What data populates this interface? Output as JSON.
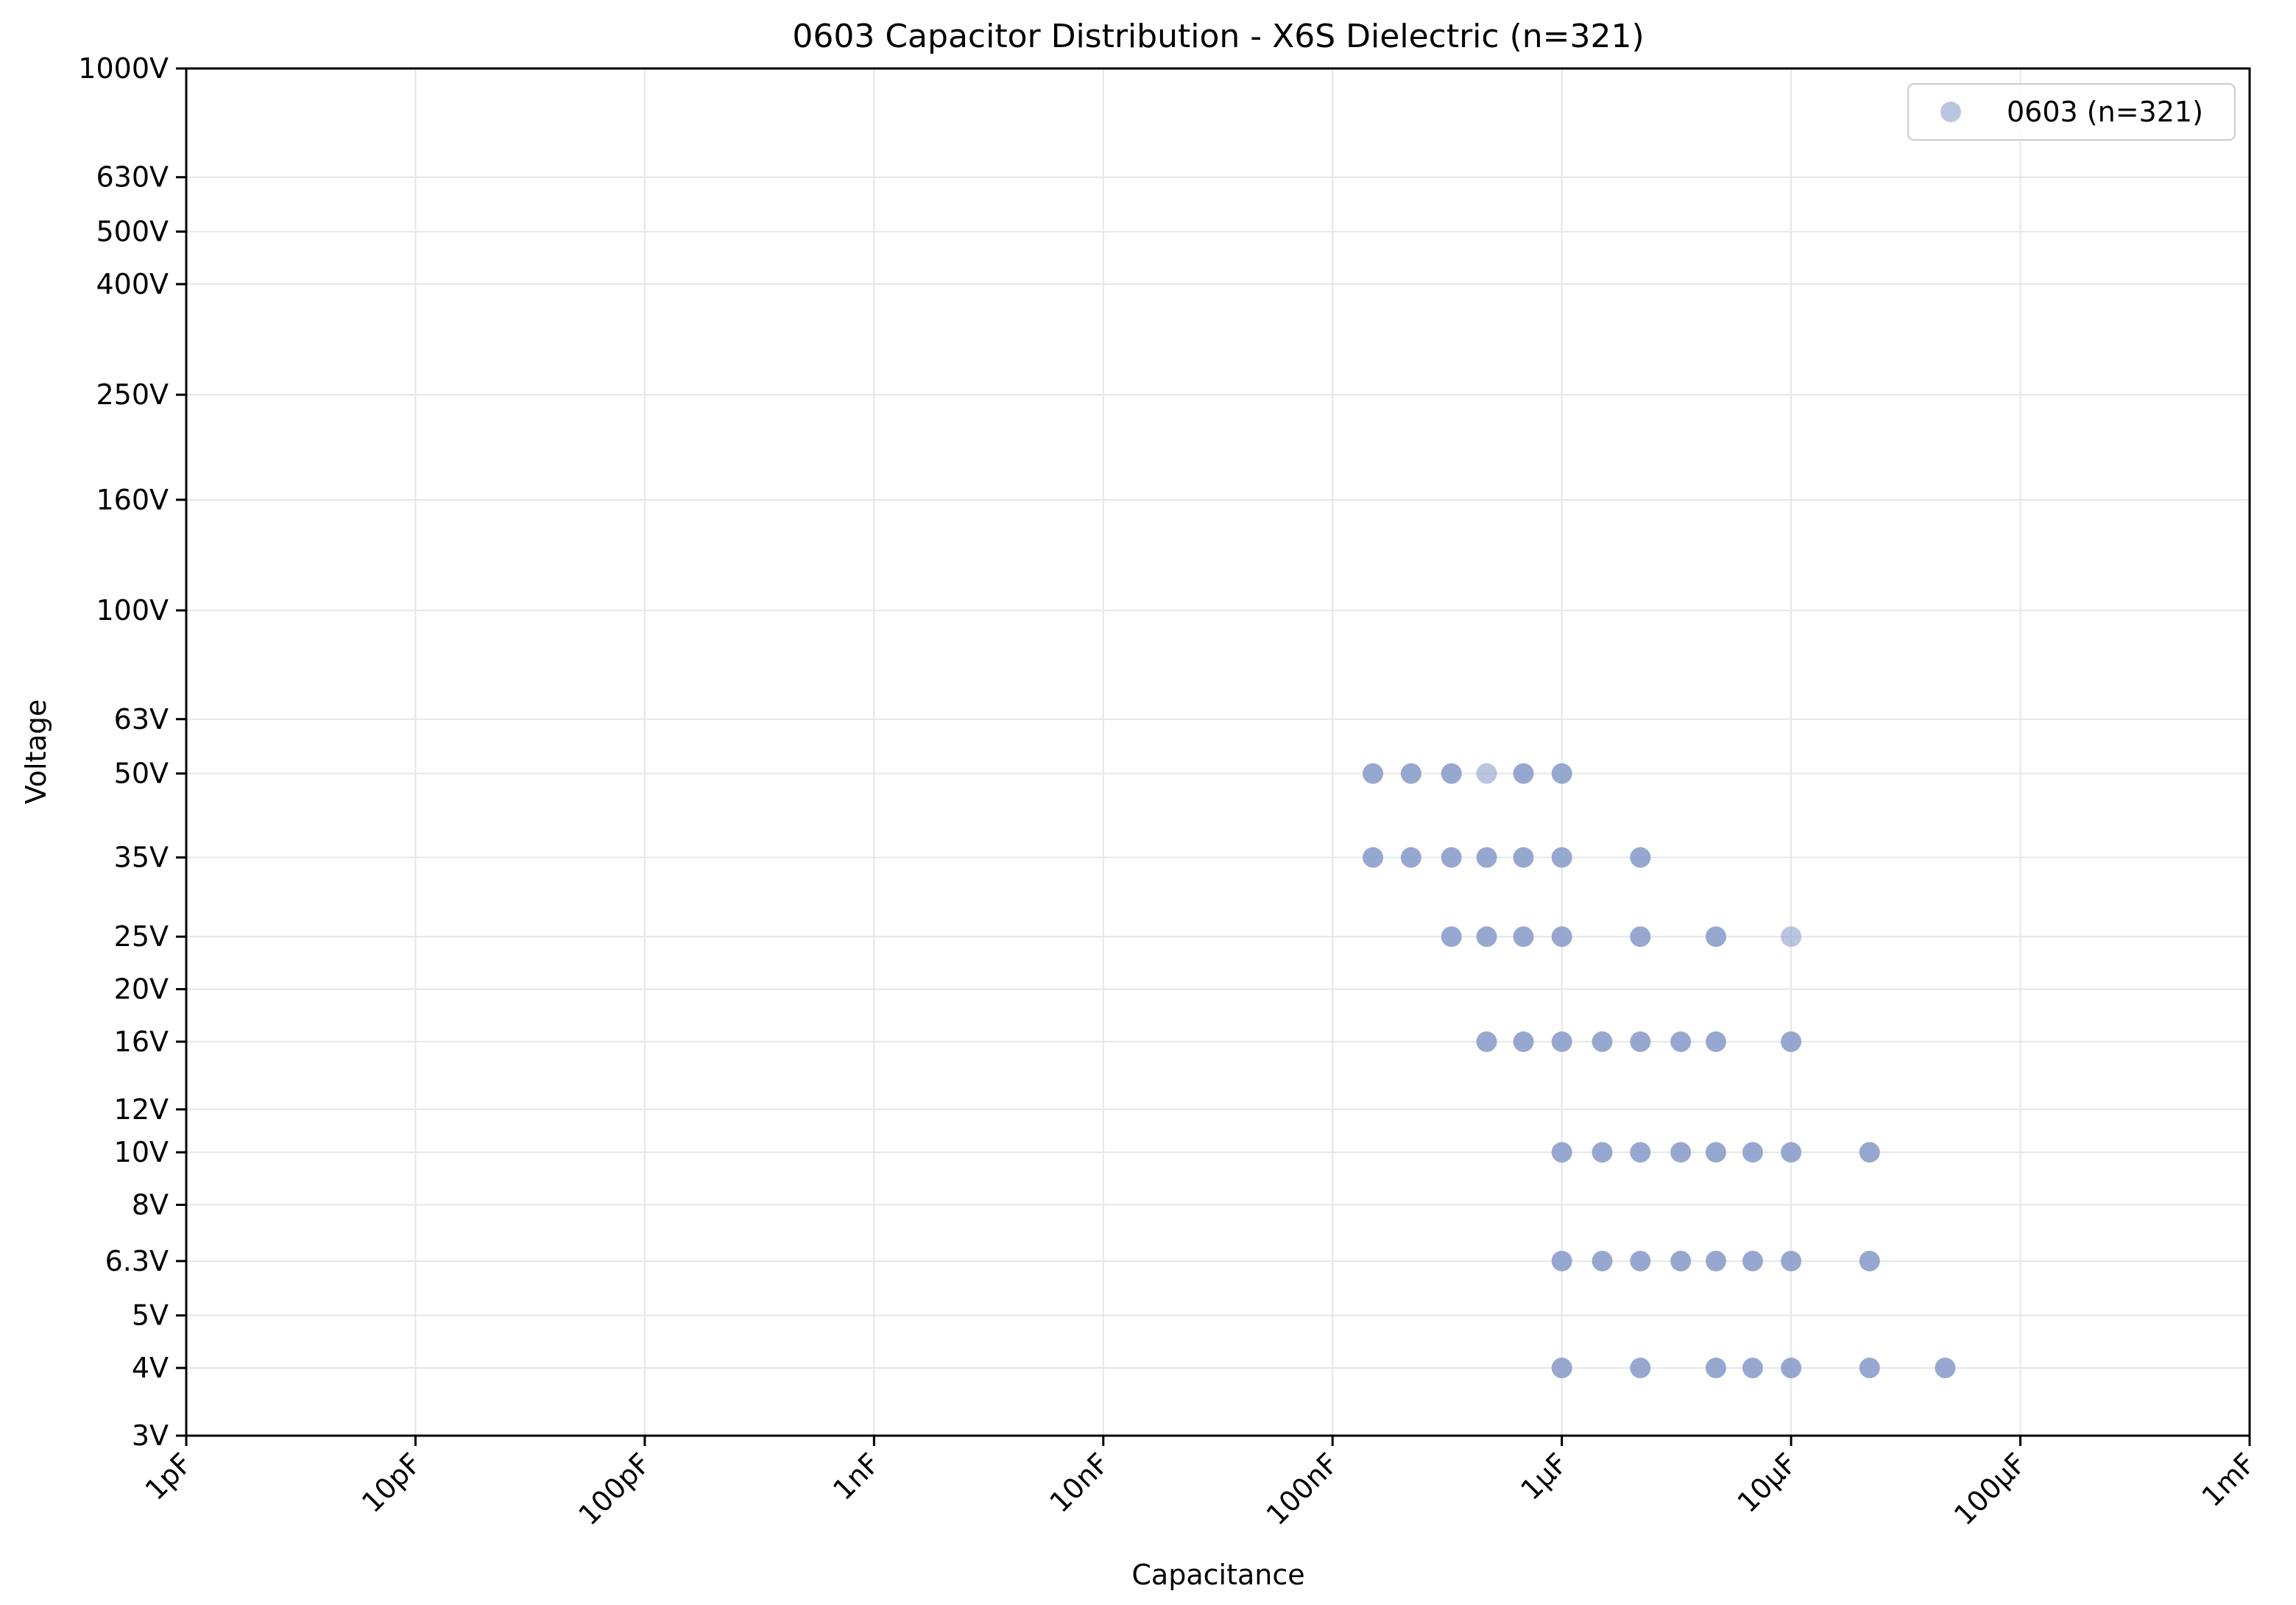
{
  "chart_data": {
    "type": "scatter",
    "title": "0603 Capacitor Distribution - X6S Dielectric (n=321)",
    "xlabel": "Capacitance",
    "ylabel": "Voltage",
    "x_scale": "log",
    "y_scale": "log",
    "xlim_farads": [
      1e-12,
      0.001
    ],
    "ylim_volts": [
      3,
      1000
    ],
    "grid": true,
    "legend_position": "top-right",
    "x_ticks": [
      {
        "value": 1e-12,
        "label": "1pF"
      },
      {
        "value": 1e-11,
        "label": "10pF"
      },
      {
        "value": 1e-10,
        "label": "100pF"
      },
      {
        "value": 1e-09,
        "label": "1nF"
      },
      {
        "value": 1e-08,
        "label": "10nF"
      },
      {
        "value": 1e-07,
        "label": "100nF"
      },
      {
        "value": 1e-06,
        "label": "1µF"
      },
      {
        "value": 1e-05,
        "label": "10µF"
      },
      {
        "value": 0.0001,
        "label": "100µF"
      },
      {
        "value": 0.001,
        "label": "1mF"
      }
    ],
    "y_ticks": [
      {
        "value": 3,
        "label": "3V"
      },
      {
        "value": 4,
        "label": "4V"
      },
      {
        "value": 5,
        "label": "5V"
      },
      {
        "value": 6.3,
        "label": "6.3V"
      },
      {
        "value": 8,
        "label": "8V"
      },
      {
        "value": 10,
        "label": "10V"
      },
      {
        "value": 12,
        "label": "12V"
      },
      {
        "value": 16,
        "label": "16V"
      },
      {
        "value": 20,
        "label": "20V"
      },
      {
        "value": 25,
        "label": "25V"
      },
      {
        "value": 35,
        "label": "35V"
      },
      {
        "value": 50,
        "label": "50V"
      },
      {
        "value": 63,
        "label": "63V"
      },
      {
        "value": 100,
        "label": "100V"
      },
      {
        "value": 160,
        "label": "160V"
      },
      {
        "value": 250,
        "label": "250V"
      },
      {
        "value": 400,
        "label": "400V"
      },
      {
        "value": 500,
        "label": "500V"
      },
      {
        "value": 630,
        "label": "630V"
      },
      {
        "value": 1000,
        "label": "1000V"
      }
    ],
    "series": [
      {
        "name": "0603 (n=321)",
        "color": "#8c9fcb",
        "points": [
          {
            "c": 1.5e-07,
            "v": 50,
            "dense": true
          },
          {
            "c": 2.2e-07,
            "v": 50,
            "dense": true
          },
          {
            "c": 3.3e-07,
            "v": 50,
            "dense": true
          },
          {
            "c": 4.7e-07,
            "v": 50,
            "dense": false
          },
          {
            "c": 6.8e-07,
            "v": 50,
            "dense": true
          },
          {
            "c": 1e-06,
            "v": 50,
            "dense": true
          },
          {
            "c": 1.5e-07,
            "v": 35,
            "dense": true
          },
          {
            "c": 2.2e-07,
            "v": 35,
            "dense": true
          },
          {
            "c": 3.3e-07,
            "v": 35,
            "dense": true
          },
          {
            "c": 4.7e-07,
            "v": 35,
            "dense": true
          },
          {
            "c": 6.8e-07,
            "v": 35,
            "dense": true
          },
          {
            "c": 1e-06,
            "v": 35,
            "dense": true
          },
          {
            "c": 2.2e-06,
            "v": 35,
            "dense": true
          },
          {
            "c": 3.3e-07,
            "v": 25,
            "dense": true
          },
          {
            "c": 4.7e-07,
            "v": 25,
            "dense": true
          },
          {
            "c": 6.8e-07,
            "v": 25,
            "dense": true
          },
          {
            "c": 1e-06,
            "v": 25,
            "dense": true
          },
          {
            "c": 2.2e-06,
            "v": 25,
            "dense": true
          },
          {
            "c": 4.7e-06,
            "v": 25,
            "dense": true
          },
          {
            "c": 1e-05,
            "v": 25,
            "dense": false
          },
          {
            "c": 4.7e-07,
            "v": 16,
            "dense": true
          },
          {
            "c": 6.8e-07,
            "v": 16,
            "dense": true
          },
          {
            "c": 1e-06,
            "v": 16,
            "dense": true
          },
          {
            "c": 1.5e-06,
            "v": 16,
            "dense": true
          },
          {
            "c": 2.2e-06,
            "v": 16,
            "dense": true
          },
          {
            "c": 3.3e-06,
            "v": 16,
            "dense": true
          },
          {
            "c": 4.7e-06,
            "v": 16,
            "dense": true
          },
          {
            "c": 1e-05,
            "v": 16,
            "dense": true
          },
          {
            "c": 1e-06,
            "v": 10,
            "dense": true
          },
          {
            "c": 1.5e-06,
            "v": 10,
            "dense": true
          },
          {
            "c": 2.2e-06,
            "v": 10,
            "dense": true
          },
          {
            "c": 3.3e-06,
            "v": 10,
            "dense": true
          },
          {
            "c": 4.7e-06,
            "v": 10,
            "dense": true
          },
          {
            "c": 6.8e-06,
            "v": 10,
            "dense": true
          },
          {
            "c": 1e-05,
            "v": 10,
            "dense": true
          },
          {
            "c": 2.2e-05,
            "v": 10,
            "dense": true
          },
          {
            "c": 1e-06,
            "v": 6.3,
            "dense": true
          },
          {
            "c": 1.5e-06,
            "v": 6.3,
            "dense": true
          },
          {
            "c": 2.2e-06,
            "v": 6.3,
            "dense": true
          },
          {
            "c": 3.3e-06,
            "v": 6.3,
            "dense": true
          },
          {
            "c": 4.7e-06,
            "v": 6.3,
            "dense": true
          },
          {
            "c": 6.8e-06,
            "v": 6.3,
            "dense": true
          },
          {
            "c": 1e-05,
            "v": 6.3,
            "dense": true
          },
          {
            "c": 2.2e-05,
            "v": 6.3,
            "dense": true
          },
          {
            "c": 1e-06,
            "v": 4,
            "dense": true
          },
          {
            "c": 2.2e-06,
            "v": 4,
            "dense": true
          },
          {
            "c": 4.7e-06,
            "v": 4,
            "dense": true
          },
          {
            "c": 6.8e-06,
            "v": 4,
            "dense": true
          },
          {
            "c": 1e-05,
            "v": 4,
            "dense": true
          },
          {
            "c": 2.2e-05,
            "v": 4,
            "dense": true
          },
          {
            "c": 4.7e-05,
            "v": 4,
            "dense": true
          }
        ]
      }
    ]
  }
}
